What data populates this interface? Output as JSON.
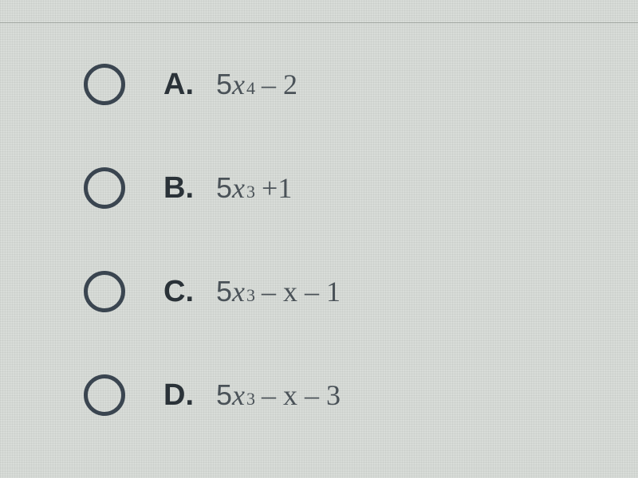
{
  "options": [
    {
      "letter": "A.",
      "coef": "5",
      "var": "x",
      "exp": "4",
      "tail": " – 2"
    },
    {
      "letter": "B.",
      "coef": "5",
      "var": "x",
      "exp": "3",
      "tail": " +1"
    },
    {
      "letter": "C.",
      "coef": "5",
      "var": "x",
      "exp": "3",
      "tail": " – x – 1"
    },
    {
      "letter": "D.",
      "coef": "5",
      "var": "x",
      "exp": "3",
      "tail": " – x – 3"
    }
  ],
  "styling": {
    "background_color": "#d8dcd8",
    "radio_border_color": "#3a4550",
    "radio_border_width": 5,
    "radio_diameter": 52,
    "letter_color": "#2a3238",
    "letter_fontsize": 38,
    "expr_color": "#4a5258",
    "expr_fontsize": 36,
    "sup_fontsize": 22,
    "row_spacing": 78
  }
}
